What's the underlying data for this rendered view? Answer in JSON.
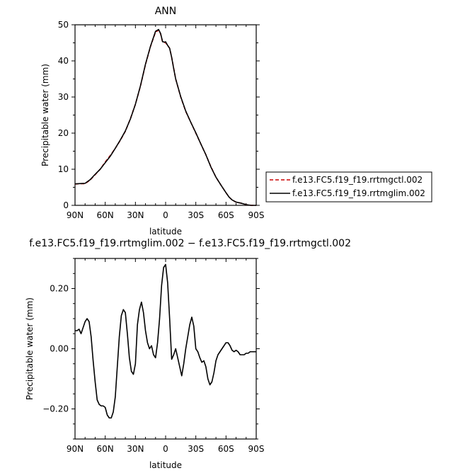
{
  "chart_data": [
    {
      "type": "line",
      "title": "ANN",
      "xlabel": "latitude",
      "ylabel": "Precipitable water (mm)",
      "xlim": [
        90,
        -90
      ],
      "ylim": [
        0,
        50
      ],
      "x_ticks": [
        90,
        60,
        30,
        0,
        -30,
        -60,
        -90
      ],
      "x_tick_labels": [
        "90N",
        "60N",
        "30N",
        "0",
        "30S",
        "60S",
        "90S"
      ],
      "y_ticks": [
        0,
        10,
        20,
        30,
        40,
        50
      ],
      "y_tick_labels": [
        "0",
        "10",
        "20",
        "30",
        "40",
        "50"
      ],
      "legend_position": "right",
      "series": [
        {
          "name": "f.e13.FC5.f19_f19.rrtmgctl.002",
          "color": "#cc0000",
          "dash": "dashed",
          "x": [
            90,
            84,
            80,
            75,
            70,
            65,
            60,
            55,
            50,
            45,
            40,
            35,
            30,
            25,
            20,
            15,
            10,
            7,
            5,
            3,
            1,
            0,
            -2,
            -4,
            -6,
            -8,
            -10,
            -15,
            -20,
            -25,
            -30,
            -35,
            -40,
            -45,
            -50,
            -55,
            -60,
            -63,
            -66,
            -70,
            -75,
            -80,
            -85,
            -90
          ],
          "y": [
            5.9,
            6.0,
            6.0,
            7.0,
            8.5,
            10.0,
            12.0,
            13.8,
            15.8,
            18.0,
            20.5,
            24.0,
            28.0,
            33.0,
            39.0,
            44.0,
            48.0,
            48.5,
            47.5,
            45.2,
            45.1,
            45.0,
            44.3,
            43.5,
            41.0,
            38.0,
            35.0,
            30.0,
            26.0,
            23.0,
            20.0,
            17.0,
            14.0,
            10.7,
            7.8,
            5.6,
            3.5,
            2.3,
            1.5,
            0.9,
            0.6,
            0.2,
            0.0,
            0.0
          ]
        },
        {
          "name": "f.e13.FC5.f19_f19.rrtmglim.002",
          "color": "#000000",
          "dash": "solid",
          "x": [
            90,
            84,
            80,
            75,
            70,
            65,
            60,
            55,
            50,
            45,
            40,
            35,
            30,
            25,
            20,
            15,
            10,
            7,
            5,
            3,
            1,
            0,
            -2,
            -4,
            -6,
            -8,
            -10,
            -15,
            -20,
            -25,
            -30,
            -35,
            -40,
            -45,
            -50,
            -55,
            -60,
            -63,
            -66,
            -70,
            -75,
            -80,
            -85,
            -90
          ],
          "y": [
            5.95,
            6.05,
            6.1,
            7.1,
            8.6,
            10.0,
            11.8,
            13.6,
            15.8,
            18.1,
            20.6,
            23.9,
            28.0,
            33.1,
            39.1,
            44.1,
            48.2,
            48.7,
            47.6,
            45.3,
            45.2,
            45.3,
            44.3,
            43.5,
            41.0,
            37.9,
            35.0,
            30.1,
            26.1,
            23.0,
            20.1,
            17.0,
            14.0,
            10.6,
            7.8,
            5.6,
            3.5,
            2.3,
            1.5,
            0.9,
            0.6,
            0.2,
            0.0,
            0.0
          ]
        }
      ]
    },
    {
      "type": "line",
      "title": "f.e13.FC5.f19_f19.rrtmglim.002 − f.e13.FC5.f19_f19.rrtmgctl.002",
      "xlabel": "latitude",
      "ylabel": "Precipitable water (mm)",
      "xlim": [
        90,
        -90
      ],
      "ylim": [
        -0.3,
        0.3
      ],
      "x_ticks": [
        90,
        60,
        30,
        0,
        -30,
        -60,
        -90
      ],
      "x_tick_labels": [
        "90N",
        "60N",
        "30N",
        "0",
        "30S",
        "60S",
        "90S"
      ],
      "y_ticks": [
        0.2,
        0.0,
        -0.2
      ],
      "y_tick_labels": [
        "0.20",
        "0.00",
        "−0.20"
      ],
      "series": [
        {
          "color": "#000000",
          "dash": "solid",
          "x": [
            90,
            88,
            86,
            84,
            82,
            80,
            78,
            76,
            74,
            72,
            70,
            68,
            66,
            64,
            62,
            60,
            58,
            56,
            54,
            52,
            50,
            48,
            46,
            44,
            42,
            40,
            38,
            36,
            34,
            32,
            30,
            28,
            26,
            24,
            22,
            20,
            18,
            16,
            14,
            12,
            10,
            8,
            6,
            4,
            2,
            0,
            -2,
            -4,
            -6,
            -8,
            -10,
            -12,
            -14,
            -16,
            -18,
            -20,
            -22,
            -24,
            -26,
            -28,
            -30,
            -32,
            -34,
            -36,
            -38,
            -40,
            -42,
            -44,
            -46,
            -48,
            -50,
            -52,
            -54,
            -56,
            -58,
            -60,
            -62,
            -64,
            -66,
            -68,
            -70,
            -72,
            -74,
            -76,
            -78,
            -80,
            -82,
            -84,
            -86,
            -88,
            -90
          ],
          "y": [
            0.06,
            0.06,
            0.065,
            0.05,
            0.07,
            0.09,
            0.1,
            0.09,
            0.04,
            -0.04,
            -0.11,
            -0.17,
            -0.185,
            -0.19,
            -0.19,
            -0.195,
            -0.22,
            -0.23,
            -0.23,
            -0.21,
            -0.16,
            -0.06,
            0.04,
            0.11,
            0.13,
            0.12,
            0.05,
            -0.03,
            -0.075,
            -0.085,
            -0.05,
            0.08,
            0.13,
            0.155,
            0.12,
            0.06,
            0.02,
            0.0,
            0.01,
            -0.02,
            -0.03,
            0.02,
            0.1,
            0.21,
            0.27,
            0.28,
            0.22,
            0.1,
            -0.035,
            -0.02,
            0.0,
            -0.03,
            -0.06,
            -0.09,
            -0.05,
            0.0,
            0.04,
            0.08,
            0.105,
            0.075,
            0.0,
            -0.01,
            -0.03,
            -0.045,
            -0.04,
            -0.06,
            -0.1,
            -0.12,
            -0.11,
            -0.08,
            -0.04,
            -0.02,
            -0.01,
            0.0,
            0.01,
            0.02,
            0.02,
            0.01,
            -0.005,
            -0.01,
            -0.005,
            -0.01,
            -0.02,
            -0.02,
            -0.02,
            -0.015,
            -0.015,
            -0.01,
            -0.01,
            -0.01,
            -0.01
          ]
        }
      ]
    }
  ]
}
